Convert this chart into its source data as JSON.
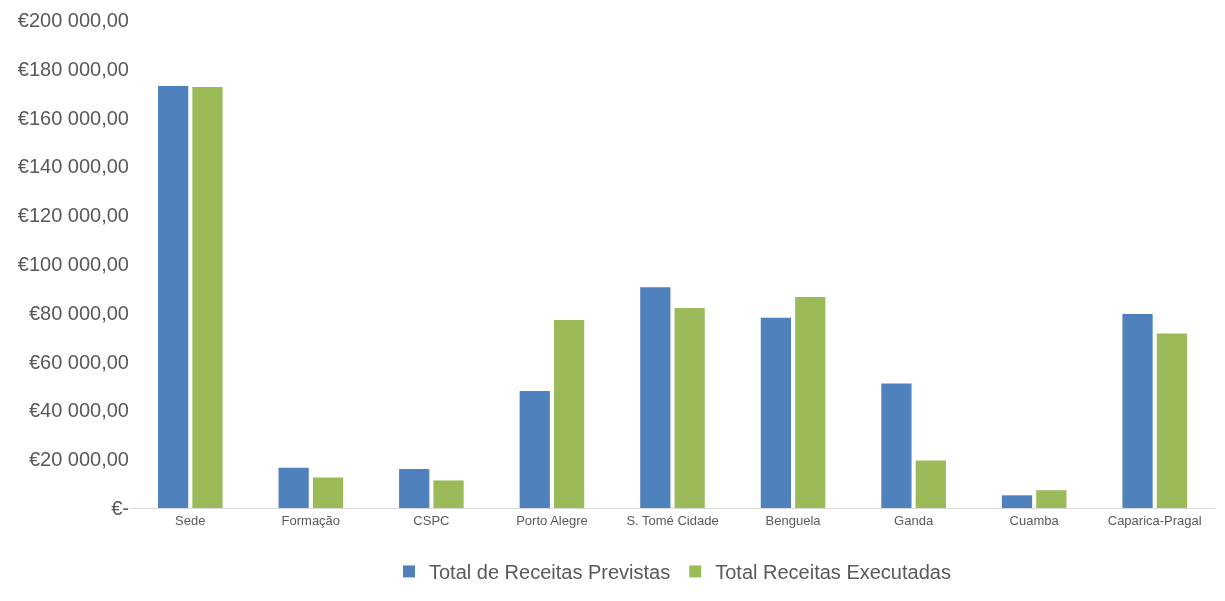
{
  "chart_data": {
    "type": "bar",
    "categories": [
      "Sede",
      "Formação",
      "CSPC",
      "Porto Alegre",
      "S. Tomé Cidade",
      "Benguela",
      "Ganda",
      "Cuamba",
      "Caparica-Pragal"
    ],
    "series": [
      {
        "name": "Total de Receitas Previstas",
        "color": "#4f81bd",
        "values": [
          173000,
          16500,
          16000,
          48000,
          90500,
          78000,
          51000,
          5200,
          79500
        ]
      },
      {
        "name": "Total Receitas Executadas",
        "color": "#9bbb59",
        "values": [
          172500,
          12500,
          11300,
          77000,
          82000,
          86500,
          19500,
          7300,
          71500
        ]
      }
    ],
    "ylim": [
      0,
      200000
    ],
    "yticks": [
      {
        "value": 0,
        "label": "€-"
      },
      {
        "value": 20000,
        "label": "€20 000,00"
      },
      {
        "value": 40000,
        "label": "€40 000,00"
      },
      {
        "value": 60000,
        "label": "€60 000,00"
      },
      {
        "value": 80000,
        "label": "€80 000,00"
      },
      {
        "value": 100000,
        "label": "€100 000,00"
      },
      {
        "value": 120000,
        "label": "€120 000,00"
      },
      {
        "value": 140000,
        "label": "€140 000,00"
      },
      {
        "value": 160000,
        "label": "€160 000,00"
      },
      {
        "value": 180000,
        "label": "€180 000,00"
      },
      {
        "value": 200000,
        "label": "€200 000,00"
      }
    ],
    "legend": "bottom"
  }
}
